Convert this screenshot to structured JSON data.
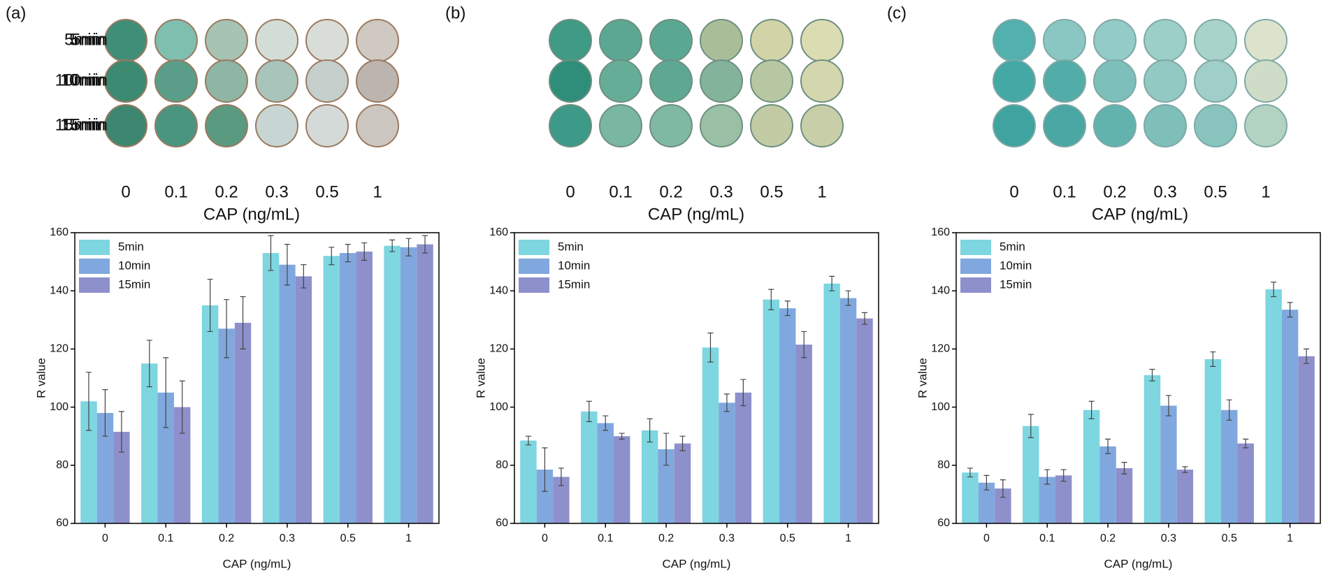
{
  "chart_data": [
    {
      "type": "bar",
      "panel": "(a)",
      "xlabel": "CAP (ng/mL)",
      "ylabel": "R value",
      "categories": [
        "0",
        "0.1",
        "0.2",
        "0.3",
        "0.5",
        "1"
      ],
      "series": [
        {
          "name": "5min",
          "color": "#7dd6e0",
          "values": [
            102,
            115,
            135,
            153,
            152,
            155.5
          ],
          "errors": [
            10,
            8,
            9,
            6,
            3,
            2
          ]
        },
        {
          "name": "10min",
          "color": "#80a8de",
          "values": [
            98,
            105,
            127,
            149,
            153,
            155
          ],
          "errors": [
            8,
            12,
            10,
            7,
            3,
            3
          ]
        },
        {
          "name": "15min",
          "color": "#8e90cb",
          "values": [
            91.5,
            100,
            129,
            145,
            153.5,
            156
          ],
          "errors": [
            7,
            9,
            9,
            4,
            3,
            3
          ]
        }
      ],
      "ylim": [
        60,
        160
      ],
      "yticks": [
        60,
        80,
        100,
        120,
        140,
        160
      ],
      "legend": "upper left"
    },
    {
      "type": "bar",
      "panel": "(b)",
      "xlabel": "CAP (ng/mL)",
      "ylabel": "R value",
      "categories": [
        "0",
        "0.1",
        "0.2",
        "0.3",
        "0.5",
        "1"
      ],
      "series": [
        {
          "name": "5min",
          "color": "#7dd6e0",
          "values": [
            88.5,
            98.5,
            92,
            120.5,
            137,
            142.5
          ],
          "errors": [
            1.5,
            3.5,
            4,
            5,
            3.5,
            2.5
          ]
        },
        {
          "name": "10min",
          "color": "#80a8de",
          "values": [
            78.5,
            94.5,
            85.5,
            101.5,
            134,
            137.5
          ],
          "errors": [
            7.5,
            2.5,
            5.5,
            3,
            2.5,
            2.5
          ]
        },
        {
          "name": "15min",
          "color": "#8e90cb",
          "values": [
            76,
            90,
            87.5,
            105,
            121.5,
            130.5
          ],
          "errors": [
            3,
            1,
            2.5,
            4.5,
            4.5,
            2
          ]
        }
      ],
      "ylim": [
        60,
        160
      ],
      "yticks": [
        60,
        80,
        100,
        120,
        140,
        160
      ],
      "legend": "upper left"
    },
    {
      "type": "bar",
      "panel": "(c)",
      "xlabel": "CAP (ng/mL)",
      "ylabel": "R value",
      "categories": [
        "0",
        "0.1",
        "0.2",
        "0.3",
        "0.5",
        "1"
      ],
      "series": [
        {
          "name": "5min",
          "color": "#7dd6e0",
          "values": [
            77.5,
            93.5,
            99,
            111,
            116.5,
            140.5
          ],
          "errors": [
            1.5,
            4,
            3,
            2,
            2.5,
            2.5
          ]
        },
        {
          "name": "10min",
          "color": "#80a8de",
          "values": [
            74,
            76,
            86.5,
            100.5,
            99,
            133.5
          ],
          "errors": [
            2.5,
            2.5,
            2.5,
            3.5,
            3.5,
            2.5
          ]
        },
        {
          "name": "15min",
          "color": "#8e90cb",
          "values": [
            72,
            76.5,
            79,
            78.5,
            87.5,
            117.5
          ],
          "errors": [
            3,
            2,
            2,
            1,
            1.5,
            2.5
          ]
        }
      ],
      "ylim": [
        60,
        160
      ],
      "yticks": [
        60,
        80,
        100,
        120,
        140,
        160
      ],
      "legend": "upper left"
    }
  ]
}
